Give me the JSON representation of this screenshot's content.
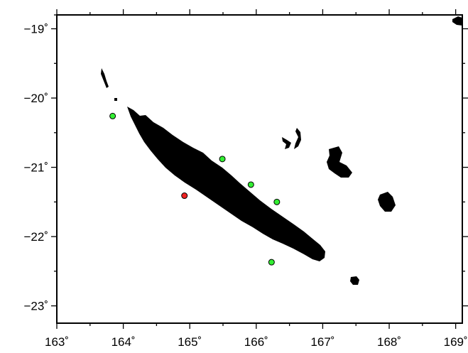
{
  "map": {
    "x_axis": {
      "min": 163,
      "max": 169.1,
      "ticks": [
        163,
        164,
        165,
        166,
        167,
        168,
        169
      ],
      "tick_labels": [
        "163˚",
        "164˚",
        "165˚",
        "166˚",
        "167˚",
        "168˚",
        "169˚"
      ]
    },
    "y_axis": {
      "min": -23.25,
      "max": -18.8,
      "ticks": [
        -19,
        -20,
        -21,
        -22,
        -23
      ],
      "tick_labels": [
        "−19˚",
        "−20˚",
        "−21˚",
        "−22˚",
        "−23˚"
      ]
    },
    "colors": {
      "land": "#000000",
      "station_marker": "#33ee33",
      "highlight_marker": "#ee2222",
      "frame": "#000000"
    },
    "markers": [
      {
        "lon": 163.84,
        "lat": -20.26,
        "color": "#33ee33"
      },
      {
        "lon": 165.49,
        "lat": -20.88,
        "color": "#33ee33"
      },
      {
        "lon": 165.92,
        "lat": -21.25,
        "color": "#33ee33"
      },
      {
        "lon": 166.31,
        "lat": -21.5,
        "color": "#33ee33"
      },
      {
        "lon": 166.23,
        "lat": -22.37,
        "color": "#33ee33"
      },
      {
        "lon": 164.92,
        "lat": -21.41,
        "color": "#ee2222"
      }
    ]
  }
}
